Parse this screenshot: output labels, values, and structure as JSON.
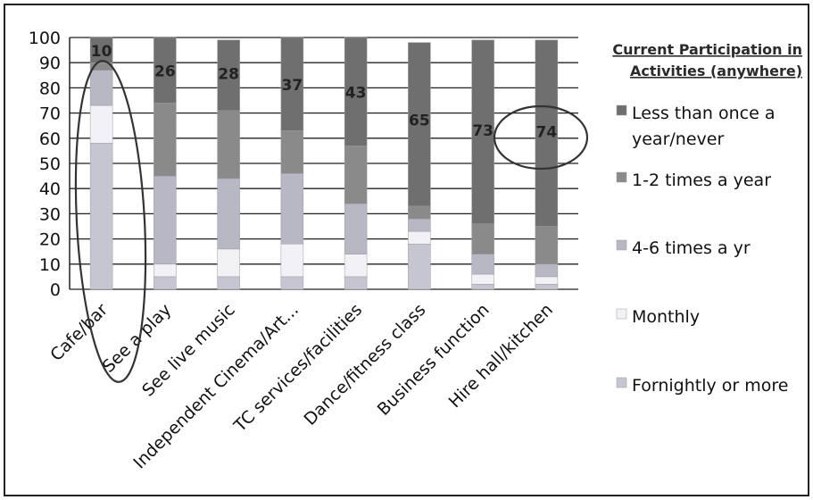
{
  "chart_data": {
    "type": "bar",
    "stacked": true,
    "title": "",
    "xlabel": "",
    "ylabel": "",
    "ylim": [
      0,
      100
    ],
    "yticks": [
      0,
      10,
      20,
      30,
      40,
      50,
      60,
      70,
      80,
      90,
      100
    ],
    "grid": true,
    "legend_position": "right",
    "legend_title_line1": "Current Participation in",
    "legend_title_line2": "Activities (anywhere)",
    "categories": [
      "Cafe/bar",
      "See a play",
      "See live music",
      "Independent Cinema/Art...",
      "TC services/facilities",
      "Dance/fitness class",
      "Business function",
      "Hire hall/kitchen"
    ],
    "series": [
      {
        "name": "Fornightly  or more",
        "color": "#c6c6d2",
        "values": [
          58,
          5,
          5,
          5,
          5,
          18,
          2,
          2
        ]
      },
      {
        "name": "Monthly",
        "color": "#f2f2f6",
        "values": [
          15,
          5,
          11,
          13,
          9,
          5,
          4,
          3
        ]
      },
      {
        "name": "4-6 times a yr",
        "color": "#b8b8c4",
        "values": [
          14,
          35,
          28,
          28,
          20,
          5,
          8,
          5
        ]
      },
      {
        "name": "1-2 times a year",
        "color": "#8a8a8a",
        "values": [
          3,
          29,
          27,
          17,
          23,
          5,
          12,
          15
        ]
      },
      {
        "name": "Less than once a year/never",
        "legend_line1": "Less than once a",
        "legend_line2": "year/never",
        "color": "#6f6f6f",
        "values": [
          10,
          26,
          28,
          37,
          43,
          65,
          73,
          74
        ]
      }
    ],
    "data_labels": [
      "10",
      "26",
      "28",
      "37",
      "43",
      "65",
      "73",
      "74"
    ]
  }
}
